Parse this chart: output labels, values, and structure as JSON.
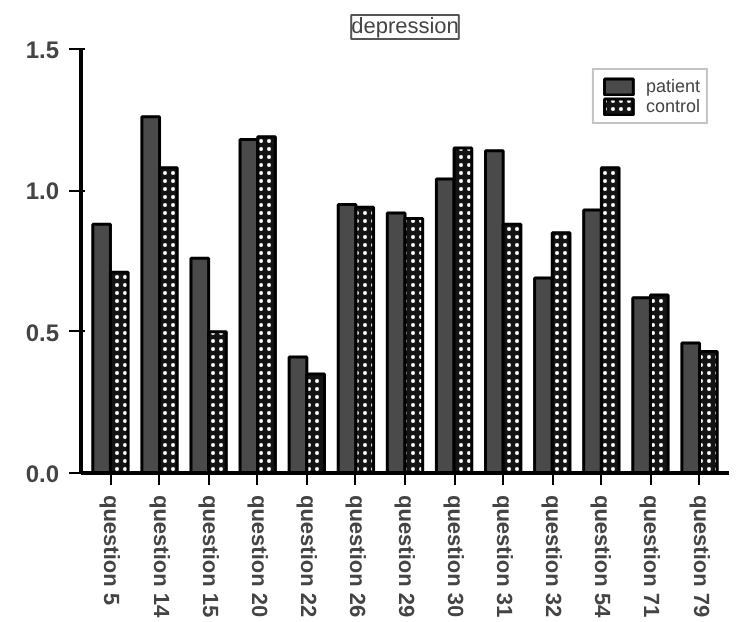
{
  "chart_data": {
    "type": "bar",
    "title": "depression",
    "categories": [
      "question 5",
      "question 14",
      "question 15",
      "question 20",
      "question 22",
      "question 26",
      "question 29",
      "question 30",
      "question 31",
      "question 32",
      "question 54",
      "question 71",
      "question 79"
    ],
    "series": [
      {
        "name": "patient",
        "color": "#4a4a4a",
        "values": [
          0.88,
          1.26,
          0.76,
          1.18,
          0.41,
          0.95,
          0.92,
          1.04,
          1.14,
          0.69,
          0.93,
          0.62,
          0.46
        ]
      },
      {
        "name": "control",
        "color": "#141414",
        "values": [
          0.71,
          1.08,
          0.5,
          1.19,
          0.35,
          0.94,
          0.9,
          1.15,
          0.88,
          0.85,
          1.08,
          0.63,
          0.43
        ]
      }
    ],
    "ylim": [
      0,
      1.5
    ],
    "yticks": [
      {
        "value": 0,
        "label": "0.0"
      },
      {
        "value": 0.5,
        "label": "0.5"
      },
      {
        "value": 1,
        "label": "1.0"
      },
      {
        "value": 1.5,
        "label": "1.5"
      }
    ],
    "grid": false,
    "legend": "top right"
  }
}
